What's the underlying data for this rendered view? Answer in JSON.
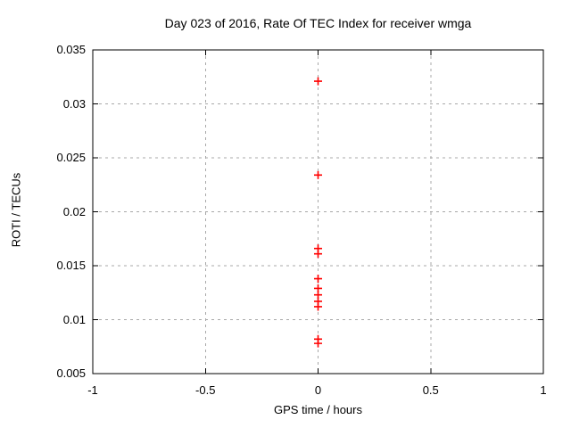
{
  "chart_data": {
    "type": "scatter",
    "title": "Day 023 of 2016, Rate Of TEC Index for receiver wmga",
    "xlabel": "GPS time / hours",
    "ylabel": "ROTI / TECUs",
    "xlim": [
      -1,
      1
    ],
    "ylim": [
      0.005,
      0.035
    ],
    "xticks": [
      -1,
      -0.5,
      0,
      0.5,
      1
    ],
    "xtick_labels": [
      "-1",
      "-0.5",
      "0",
      "0.5",
      "1"
    ],
    "yticks": [
      0.005,
      0.01,
      0.015,
      0.02,
      0.025,
      0.03,
      0.035
    ],
    "ytick_labels": [
      "0.005",
      "0.01",
      "0.015",
      "0.02",
      "0.025",
      "0.03",
      "0.035"
    ],
    "grid": true,
    "grid_color": "#a8a8a8",
    "axis_color": "#000000",
    "legend_position": "none",
    "marker": "plus",
    "marker_color": "#ff0000",
    "series": [
      {
        "name": "ROTI",
        "points": [
          {
            "x": 0,
            "y": 0.0321
          },
          {
            "x": 0,
            "y": 0.0234
          },
          {
            "x": 0,
            "y": 0.0166
          },
          {
            "x": 0,
            "y": 0.0161
          },
          {
            "x": 0,
            "y": 0.0138
          },
          {
            "x": 0,
            "y": 0.0129
          },
          {
            "x": 0,
            "y": 0.0123
          },
          {
            "x": 0,
            "y": 0.0117
          },
          {
            "x": 0,
            "y": 0.0112
          },
          {
            "x": 0,
            "y": 0.0082
          },
          {
            "x": 0,
            "y": 0.0078
          }
        ]
      }
    ]
  }
}
